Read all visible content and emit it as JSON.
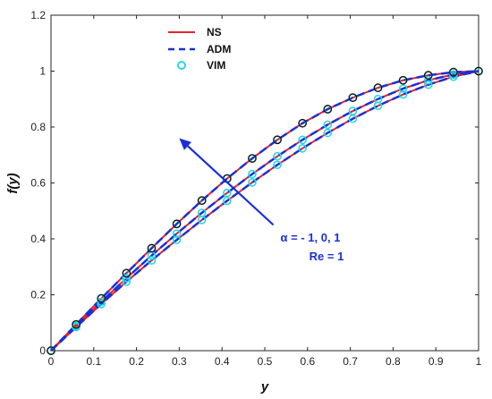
{
  "chart_data": {
    "type": "line",
    "xlabel": "y",
    "ylabel": "f(y)",
    "xlim": [
      0,
      1
    ],
    "ylim": [
      0,
      1.2
    ],
    "xticks": [
      0,
      0.1,
      0.2,
      0.3,
      0.4,
      0.5,
      0.6,
      0.7,
      0.8,
      0.9,
      1
    ],
    "yticks": [
      0,
      0.2,
      0.4,
      0.6,
      0.8,
      1,
      1.2
    ],
    "x": [
      0,
      0.0588,
      0.1176,
      0.1765,
      0.2353,
      0.2941,
      0.3529,
      0.4118,
      0.4706,
      0.5294,
      0.5882,
      0.6471,
      0.7059,
      0.7647,
      0.8235,
      0.8824,
      0.9412,
      1
    ],
    "series": [
      {
        "name": "NS",
        "style": "solid",
        "color": "#e8202a",
        "curves": [
          {
            "alpha": -1,
            "values": [
              0,
              0.0937,
              0.1869,
              0.2772,
              0.3664,
              0.4535,
              0.5371,
              0.6157,
              0.6877,
              0.7543,
              0.8136,
              0.8639,
              0.9052,
              0.9404,
              0.9672,
              0.9852,
              0.9963,
              1
            ]
          },
          {
            "alpha": 0,
            "values": [
              0,
              0.0882,
              0.1751,
              0.2595,
              0.3403,
              0.4187,
              0.4932,
              0.5641,
              0.6318,
              0.6954,
              0.7541,
              0.8084,
              0.8574,
              0.9001,
              0.9376,
              0.9672,
              0.9879,
              1
            ]
          },
          {
            "alpha": 1,
            "values": [
              0,
              0.0846,
              0.1669,
              0.2468,
              0.323,
              0.3964,
              0.4676,
              0.5361,
              0.6019,
              0.6647,
              0.7238,
              0.779,
              0.8298,
              0.876,
              0.9166,
              0.9513,
              0.9802,
              1
            ]
          }
        ]
      },
      {
        "name": "ADM",
        "style": "dashed",
        "color": "#1b2fd6",
        "curves": [
          {
            "alpha": -1,
            "values": [
              0,
              0.0937,
              0.1869,
              0.2772,
              0.3664,
              0.4535,
              0.5371,
              0.6157,
              0.6877,
              0.7543,
              0.8136,
              0.8639,
              0.9052,
              0.9404,
              0.9672,
              0.9852,
              0.9963,
              1
            ]
          },
          {
            "alpha": 0,
            "values": [
              0,
              0.0882,
              0.1751,
              0.2595,
              0.3403,
              0.4187,
              0.4932,
              0.5641,
              0.6318,
              0.6954,
              0.7541,
              0.8084,
              0.8574,
              0.9001,
              0.9376,
              0.9672,
              0.9879,
              1
            ]
          },
          {
            "alpha": 1,
            "values": [
              0,
              0.0846,
              0.1669,
              0.2468,
              0.323,
              0.3964,
              0.4676,
              0.5361,
              0.6019,
              0.6647,
              0.7238,
              0.779,
              0.8298,
              0.876,
              0.9166,
              0.9513,
              0.9802,
              1
            ]
          }
        ]
      },
      {
        "name": "VIM",
        "style": "markers",
        "color": "#26d7e6",
        "curves": [
          {
            "alpha": -1,
            "values": [
              0,
              0.0937,
              0.1869,
              0.2772,
              0.3664,
              0.4535,
              0.5371,
              0.6157,
              0.6877,
              0.7543,
              0.8136,
              0.8639,
              0.9052,
              0.9404,
              0.9672,
              0.9852,
              0.9963,
              1
            ]
          },
          {
            "alpha": 0,
            "values": [
              0,
              0.0882,
              0.1751,
              0.2595,
              0.3403,
              0.4187,
              0.4932,
              0.5641,
              0.6318,
              0.6954,
              0.7541,
              0.8084,
              0.8574,
              0.9001,
              0.9376,
              0.9672,
              0.9879,
              1
            ]
          },
          {
            "alpha": 1,
            "values": [
              0,
              0.0846,
              0.1669,
              0.2468,
              0.323,
              0.3964,
              0.4676,
              0.5361,
              0.6019,
              0.6647,
              0.7238,
              0.779,
              0.8298,
              0.876,
              0.9166,
              0.9513,
              0.9802,
              1
            ]
          }
        ]
      }
    ],
    "black_circle_markers": {
      "color": "#111111",
      "curve_alpha": -1
    },
    "legend": {
      "placement": "top-left",
      "entries": [
        "NS",
        "ADM",
        "VIM"
      ]
    },
    "annotation": {
      "line1": "α = - 1, 0, 1",
      "line2": "Re = 1",
      "color": "#1b2fd6",
      "arrow_from": [
        0.52,
        0.45
      ],
      "arrow_to": [
        0.3,
        0.76
      ]
    },
    "grid": false
  }
}
